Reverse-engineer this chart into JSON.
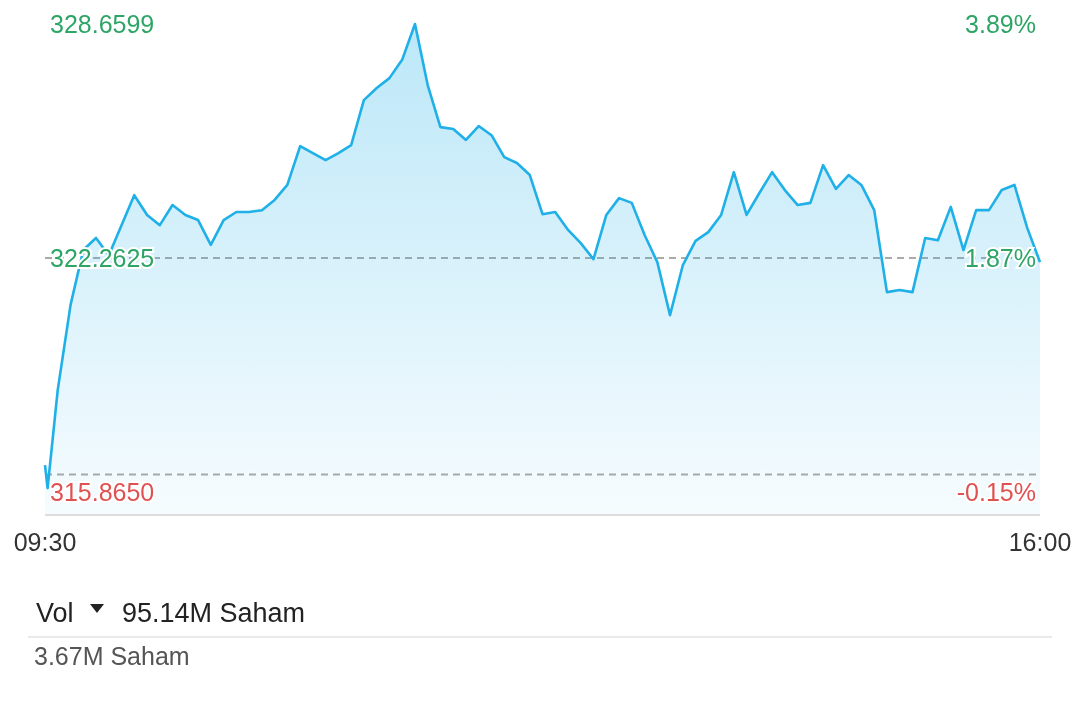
{
  "chart_data": {
    "type": "area",
    "color": "#1fb0e8",
    "x": [
      9.5,
      9.517,
      9.583,
      9.667,
      9.75,
      9.833,
      9.917,
      10.0,
      10.083,
      10.167,
      10.25,
      10.333,
      10.417,
      10.5,
      10.583,
      10.667,
      10.75,
      10.833,
      10.917,
      11.0,
      11.083,
      11.167,
      11.25,
      11.333,
      11.417,
      11.5,
      11.583,
      11.667,
      11.75,
      11.833,
      11.917,
      12.0,
      12.083,
      12.167,
      12.25,
      12.333,
      12.417,
      12.5,
      12.583,
      12.667,
      12.75,
      12.833,
      12.917,
      13.0,
      13.083,
      13.167,
      13.25,
      13.333,
      13.417,
      13.5,
      13.583,
      13.667,
      13.75,
      13.833,
      13.917,
      14.0,
      14.083,
      14.167,
      14.25,
      14.333,
      14.417,
      14.5,
      14.583,
      14.667,
      14.75,
      14.833,
      14.917,
      15.0,
      15.083,
      15.167,
      15.25,
      15.333,
      15.417,
      15.5,
      15.583,
      15.667,
      15.75,
      15.833,
      15.917,
      16.0
    ],
    "values": [
      316.6,
      315.97,
      318.65,
      320.98,
      322.48,
      322.81,
      322.34,
      323.16,
      323.98,
      323.44,
      323.16,
      323.71,
      323.44,
      323.3,
      322.62,
      323.3,
      323.52,
      323.52,
      323.57,
      323.85,
      324.26,
      325.32,
      325.13,
      324.94,
      325.13,
      325.35,
      326.58,
      326.91,
      327.18,
      327.68,
      328.6599,
      326.99,
      325.84,
      325.79,
      325.49,
      325.87,
      325.62,
      325.02,
      324.86,
      324.53,
      323.46,
      323.52,
      323.03,
      322.67,
      322.23,
      323.44,
      323.9,
      323.77,
      322.89,
      322.15,
      320.7,
      322.07,
      322.73,
      322.97,
      323.44,
      324.61,
      323.44,
      324.04,
      324.61,
      324.12,
      323.71,
      323.77,
      324.8,
      324.15,
      324.53,
      324.26,
      323.57,
      321.33,
      321.39,
      321.33,
      322.81,
      322.75,
      323.66,
      322.48,
      323.57,
      323.57,
      324.12,
      324.26,
      323.08,
      322.15
    ],
    "ylim": [
      315.865,
      328.6599
    ],
    "yticks": [
      {
        "value": 315.865,
        "label": "315.8650"
      },
      {
        "value": 322.2625,
        "label": "322.2625"
      },
      {
        "value": 328.6599,
        "label": "328.6599"
      }
    ],
    "y2lim": [
      -0.15,
      3.89
    ],
    "y2ticks": [
      {
        "value": -0.15,
        "label": "-0.15%"
      },
      {
        "value": 1.87,
        "label": "1.87%"
      },
      {
        "value": 3.89,
        "label": "3.89%"
      }
    ],
    "xlim": [
      9.5,
      16
    ],
    "xticks": [
      {
        "value": 9.5,
        "label": "09:30"
      },
      {
        "value": 16,
        "label": "16:00"
      }
    ],
    "ref_lines": [
      {
        "axis": "y",
        "value": 322.2625,
        "color": "#aaaaaa",
        "line_style": "dashed"
      },
      {
        "axis": "y2",
        "value": 0,
        "color": "#aaaaaa",
        "line_style": "dashed"
      }
    ],
    "grid": false,
    "marker": "none",
    "line_style": "solid",
    "annotations": [
      "Vol",
      "95.14M Saham",
      "3.67M Saham"
    ]
  }
}
